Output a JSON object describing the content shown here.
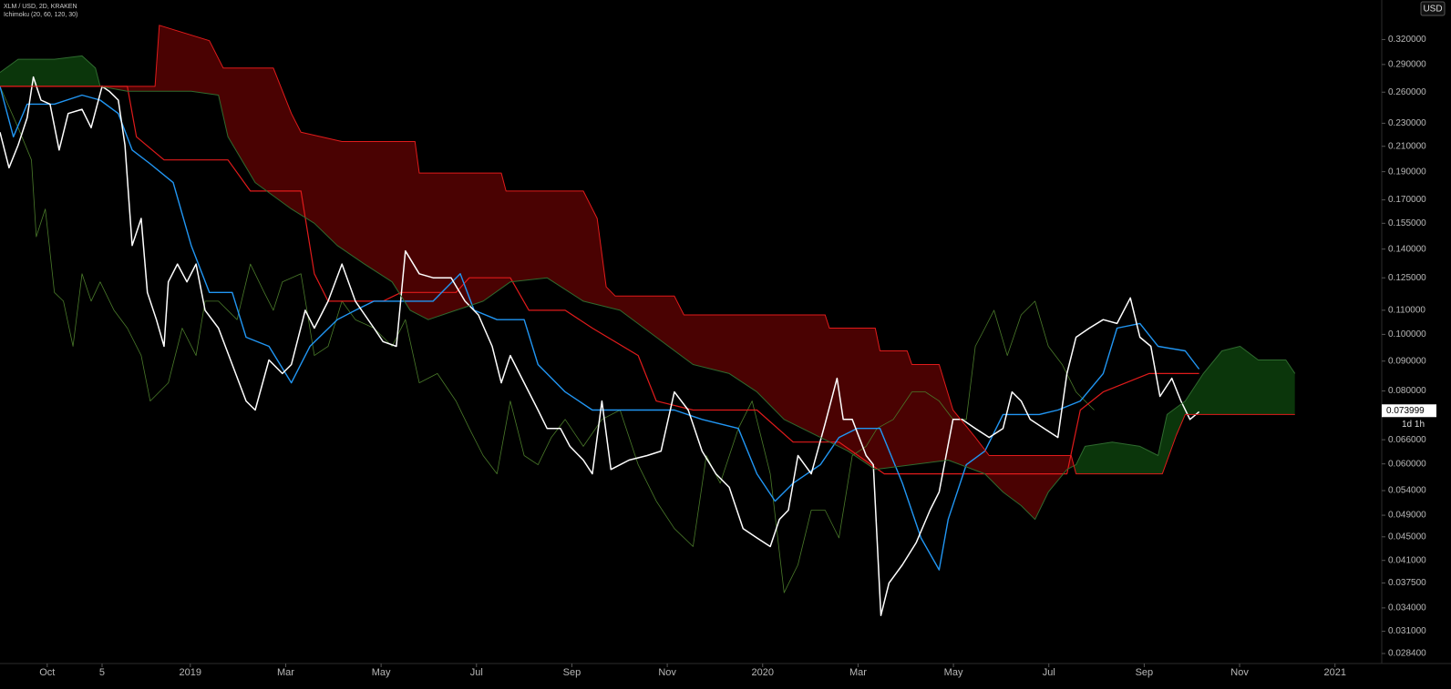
{
  "chart_data": {
    "type": "line",
    "log_scale": true,
    "grid": false,
    "title": "XLM / USD, 2D, KRAKEN",
    "subtitle": "Ichimoku (20, 60, 120, 30)",
    "currency": "USD",
    "last_price": 0.073999,
    "countdown": "1d 1h",
    "background": "#000000",
    "xlim": [
      -0.99,
      27.98
    ],
    "ylim": [
      0.0273,
      0.374
    ],
    "xticks": [
      {
        "value": 0,
        "label": "Oct"
      },
      {
        "value": 1.15,
        "label": "5"
      },
      {
        "value": 3,
        "label": "2019"
      },
      {
        "value": 5,
        "label": "Mar"
      },
      {
        "value": 7,
        "label": "May"
      },
      {
        "value": 9,
        "label": "Jul"
      },
      {
        "value": 11,
        "label": "Sep"
      },
      {
        "value": 13,
        "label": "Nov"
      },
      {
        "value": 15,
        "label": "2020"
      },
      {
        "value": 17,
        "label": "Mar"
      },
      {
        "value": 19,
        "label": "May"
      },
      {
        "value": 21,
        "label": "Jul"
      },
      {
        "value": 23,
        "label": "Sep"
      },
      {
        "value": 25,
        "label": "Nov"
      },
      {
        "value": 27,
        "label": "2021"
      }
    ],
    "yticks": [
      {
        "value": 0.32,
        "label": "0.320000"
      },
      {
        "value": 0.29,
        "label": "0.290000"
      },
      {
        "value": 0.26,
        "label": "0.260000"
      },
      {
        "value": 0.23,
        "label": "0.230000"
      },
      {
        "value": 0.21,
        "label": "0.210000"
      },
      {
        "value": 0.19,
        "label": "0.190000"
      },
      {
        "value": 0.17,
        "label": "0.170000"
      },
      {
        "value": 0.155,
        "label": "0.155000"
      },
      {
        "value": 0.14,
        "label": "0.140000"
      },
      {
        "value": 0.125,
        "label": "0.125000"
      },
      {
        "value": 0.11,
        "label": "0.110000"
      },
      {
        "value": 0.1,
        "label": "0.100000"
      },
      {
        "value": 0.09,
        "label": "0.090000"
      },
      {
        "value": 0.08,
        "label": "0.080000"
      },
      {
        "value": 0.066,
        "label": "0.066000"
      },
      {
        "value": 0.06,
        "label": "0.060000"
      },
      {
        "value": 0.054,
        "label": "0.054000"
      },
      {
        "value": 0.049,
        "label": "0.049000"
      },
      {
        "value": 0.045,
        "label": "0.045000"
      },
      {
        "value": 0.041,
        "label": "0.041000"
      },
      {
        "value": 0.0375,
        "label": "0.037500"
      },
      {
        "value": 0.034,
        "label": "0.034000"
      },
      {
        "value": 0.031,
        "label": "0.031000"
      },
      {
        "value": 0.0284,
        "label": "0.028400"
      }
    ],
    "cloud": {
      "above_color": "#4a0202",
      "below_color": "#0b360b"
    },
    "series": [
      {
        "color": "#4a7a2a",
        "width": 0.8,
        "x": [
          -0.99,
          -0.61,
          -0.33,
          -0.23,
          -0.04,
          0.15,
          0.34,
          0.54,
          0.73,
          0.92,
          1.11,
          1.4,
          1.68,
          1.97,
          2.16,
          2.35,
          2.54,
          2.83,
          3.12,
          3.31,
          3.59,
          3.98,
          4.26,
          4.55,
          4.74,
          4.93,
          5.32,
          5.6,
          5.89,
          6.18,
          6.46,
          6.85,
          7.23,
          7.51,
          7.8,
          8.18,
          8.57,
          8.85,
          9.14,
          9.43,
          9.71,
          10.0,
          10.29,
          10.57,
          10.86,
          11.24,
          11.63,
          12.01,
          12.39,
          12.77,
          13.15,
          13.54,
          13.82,
          14.11,
          14.49,
          14.78,
          15.16,
          15.45,
          15.74,
          16.02,
          16.31,
          16.6,
          16.88,
          17.17,
          17.4,
          17.74,
          18.13,
          18.41,
          18.7,
          18.99,
          19.27,
          19.46,
          19.66,
          19.85,
          20.13,
          20.42,
          20.71,
          20.99,
          21.28,
          21.57,
          21.76,
          21.95
        ],
        "values": [
          0.266,
          0.226,
          0.199,
          0.147,
          0.164,
          0.118,
          0.114,
          0.0954,
          0.127,
          0.114,
          0.123,
          0.11,
          0.1025,
          0.092,
          0.0769,
          0.0797,
          0.0826,
          0.1025,
          0.092,
          0.114,
          0.114,
          0.106,
          0.132,
          0.118,
          0.11,
          0.123,
          0.127,
          0.092,
          0.0954,
          0.114,
          0.106,
          0.1025,
          0.0954,
          0.106,
          0.0826,
          0.0857,
          0.0769,
          0.069,
          0.062,
          0.0577,
          0.0769,
          0.062,
          0.0598,
          0.0666,
          0.0715,
          0.0643,
          0.0715,
          0.0742,
          0.0598,
          0.0518,
          0.0465,
          0.0433,
          0.062,
          0.0556,
          0.069,
          0.0769,
          0.0577,
          0.0361,
          0.0403,
          0.05,
          0.05,
          0.0448,
          0.062,
          0.0643,
          0.069,
          0.0715,
          0.0797,
          0.0797,
          0.0769,
          0.0715,
          0.0715,
          0.0954,
          0.1025,
          0.11,
          0.092,
          0.108,
          0.114,
          0.0954,
          0.0888,
          0.0797,
          0.0769,
          0.0742
        ]
      },
      {
        "color": "#e01b1b",
        "width": 1.2,
        "x": [
          -0.99,
          1.68,
          1.87,
          2.45,
          3.79,
          4.26,
          5.32,
          5.6,
          5.89,
          7.04,
          7.42,
          8.57,
          8.85,
          9.71,
          10.1,
          10.86,
          11.43,
          12.39,
          12.77,
          13.54,
          14.88,
          15.64,
          16.6,
          17.55,
          21.38,
          21.66,
          22.14,
          23.1,
          24.15
        ],
        "values": [
          0.266,
          0.266,
          0.218,
          0.199,
          0.199,
          0.176,
          0.176,
          0.127,
          0.114,
          0.114,
          0.118,
          0.118,
          0.125,
          0.125,
          0.11,
          0.11,
          0.1025,
          0.092,
          0.0769,
          0.0742,
          0.0742,
          0.0654,
          0.0654,
          0.0577,
          0.0577,
          0.0742,
          0.0797,
          0.0857,
          0.0857
        ]
      },
      {
        "color": "#2196f3",
        "width": 1.4,
        "x": [
          -0.99,
          -0.71,
          -0.42,
          0.15,
          0.73,
          1.11,
          1.49,
          1.78,
          2.16,
          2.64,
          3.02,
          3.4,
          3.88,
          4.17,
          4.65,
          5.12,
          5.51,
          6.08,
          6.46,
          6.85,
          7.42,
          8.09,
          8.66,
          8.95,
          9.43,
          10.0,
          10.29,
          10.86,
          11.43,
          11.82,
          13.15,
          13.73,
          14.49,
          14.88,
          15.26,
          15.64,
          16.21,
          16.6,
          16.98,
          17.46,
          17.93,
          18.32,
          18.7,
          18.89,
          19.27,
          19.66,
          20.04,
          20.8,
          21.19,
          21.66,
          22.14,
          22.43,
          22.91,
          23.29,
          23.86,
          24.15
        ],
        "values": [
          0.266,
          0.218,
          0.248,
          0.248,
          0.257,
          0.252,
          0.239,
          0.207,
          0.196,
          0.182,
          0.142,
          0.118,
          0.118,
          0.0989,
          0.0954,
          0.0826,
          0.0954,
          0.106,
          0.11,
          0.114,
          0.114,
          0.114,
          0.127,
          0.11,
          0.106,
          0.106,
          0.0888,
          0.0797,
          0.0742,
          0.0742,
          0.0742,
          0.0715,
          0.069,
          0.0577,
          0.0518,
          0.0556,
          0.0598,
          0.0666,
          0.069,
          0.069,
          0.0556,
          0.0448,
          0.0395,
          0.0482,
          0.0598,
          0.0631,
          0.0729,
          0.0729,
          0.0742,
          0.0769,
          0.0857,
          0.1025,
          0.1044,
          0.0954,
          0.0937,
          0.0872
        ]
      },
      {
        "color": "#ffffff",
        "width": 1.5,
        "x": [
          -0.99,
          -0.8,
          -0.61,
          -0.42,
          -0.29,
          -0.13,
          0.06,
          0.25,
          0.44,
          0.73,
          0.92,
          1.15,
          1.3,
          1.49,
          1.63,
          1.78,
          1.97,
          2.1,
          2.29,
          2.45,
          2.54,
          2.73,
          2.93,
          3.12,
          3.31,
          3.59,
          3.88,
          4.17,
          4.36,
          4.65,
          4.93,
          5.12,
          5.41,
          5.6,
          5.89,
          6.18,
          6.46,
          6.85,
          7.04,
          7.32,
          7.51,
          7.8,
          8.09,
          8.47,
          8.76,
          9.04,
          9.33,
          9.52,
          9.71,
          10.0,
          10.29,
          10.48,
          10.76,
          10.96,
          11.24,
          11.43,
          11.63,
          11.82,
          12.2,
          12.58,
          12.87,
          13.15,
          13.44,
          13.73,
          14.02,
          14.3,
          14.59,
          14.88,
          15.16,
          15.35,
          15.54,
          15.74,
          16.02,
          16.31,
          16.56,
          16.69,
          16.88,
          17.17,
          17.32,
          17.48,
          17.65,
          17.93,
          18.22,
          18.51,
          18.7,
          18.99,
          19.18,
          19.46,
          19.75,
          20.04,
          20.23,
          20.42,
          20.61,
          20.9,
          21.19,
          21.38,
          21.57,
          21.85,
          22.14,
          22.43,
          22.71,
          22.91,
          23.14,
          23.33,
          23.58,
          23.77,
          23.96,
          24.15
        ],
        "values": [
          0.222,
          0.193,
          0.211,
          0.235,
          0.276,
          0.252,
          0.248,
          0.207,
          0.239,
          0.243,
          0.226,
          0.266,
          0.261,
          0.252,
          0.211,
          0.142,
          0.158,
          0.118,
          0.106,
          0.0954,
          0.123,
          0.132,
          0.123,
          0.132,
          0.11,
          0.1025,
          0.0888,
          0.0769,
          0.0742,
          0.0904,
          0.0857,
          0.0888,
          0.11,
          0.1025,
          0.114,
          0.132,
          0.114,
          0.1025,
          0.0972,
          0.0954,
          0.139,
          0.127,
          0.125,
          0.125,
          0.114,
          0.108,
          0.0954,
          0.0826,
          0.092,
          0.0826,
          0.0742,
          0.069,
          0.069,
          0.0643,
          0.0609,
          0.0577,
          0.0769,
          0.0587,
          0.0609,
          0.062,
          0.0631,
          0.0797,
          0.0742,
          0.0631,
          0.0577,
          0.0547,
          0.0465,
          0.0448,
          0.0433,
          0.0482,
          0.05,
          0.062,
          0.0577,
          0.0703,
          0.0841,
          0.0715,
          0.0715,
          0.062,
          0.0598,
          0.033,
          0.0375,
          0.0403,
          0.044,
          0.05,
          0.0537,
          0.0715,
          0.0715,
          0.069,
          0.0666,
          0.069,
          0.0797,
          0.0769,
          0.0715,
          0.069,
          0.0666,
          0.0857,
          0.0989,
          0.1025,
          0.106,
          0.1044,
          0.1155,
          0.0989,
          0.0954,
          0.0783,
          0.0841,
          0.0769,
          0.0715,
          0.0737
        ]
      },
      {
        "color": "#2f6b2f",
        "width": 1,
        "x": [
          -0.99,
          -0.61,
          0.15,
          0.73,
          1.01,
          1.11,
          1.68,
          2.45,
          3.02,
          3.59,
          3.79,
          4.36,
          5.12,
          5.6,
          6.08,
          6.65,
          7.23,
          7.61,
          7.99,
          8.57,
          9.14,
          9.71,
          10.48,
          11.24,
          12.01,
          12.77,
          13.54,
          14.3,
          14.88,
          15.45,
          16.21,
          16.79,
          17.36,
          18.13,
          18.89,
          19.66,
          20.04,
          20.42,
          20.71,
          20.99,
          21.38,
          21.57,
          21.76,
          22.33,
          22.91,
          23.29,
          23.48,
          23.86,
          24.24,
          24.63,
          25.01,
          25.39,
          25.97,
          26.16
        ],
        "values": [
          0.281,
          0.296,
          0.296,
          0.3,
          0.286,
          0.266,
          0.261,
          0.261,
          0.261,
          0.257,
          0.218,
          0.182,
          0.164,
          0.155,
          0.142,
          0.132,
          0.123,
          0.11,
          0.106,
          0.11,
          0.114,
          0.123,
          0.125,
          0.114,
          0.11,
          0.0989,
          0.0888,
          0.0857,
          0.0797,
          0.0715,
          0.0666,
          0.0631,
          0.0587,
          0.0598,
          0.0609,
          0.0577,
          0.0537,
          0.0509,
          0.0482,
          0.0537,
          0.0587,
          0.0598,
          0.0643,
          0.0654,
          0.0643,
          0.062,
          0.0729,
          0.0769,
          0.0857,
          0.0937,
          0.0954,
          0.0904,
          0.0904,
          0.0857
        ]
      },
      {
        "color": "#e01b1b",
        "width": 1,
        "x": [
          -0.99,
          2.26,
          2.35,
          3.4,
          3.69,
          4.74,
          5.12,
          5.32,
          6.18,
          7.71,
          7.8,
          9.52,
          9.62,
          11.24,
          11.53,
          11.72,
          11.91,
          13.15,
          13.35,
          16.31,
          16.4,
          17.36,
          17.46,
          18.03,
          18.13,
          18.7,
          18.99,
          19.46,
          19.75,
          21.47,
          21.57,
          23.38,
          23.67,
          23.86,
          26.16
        ],
        "values": [
          0.266,
          0.266,
          0.3385,
          0.3185,
          0.286,
          0.286,
          0.239,
          0.222,
          0.214,
          0.214,
          0.189,
          0.189,
          0.176,
          0.176,
          0.158,
          0.1206,
          0.1163,
          0.1163,
          0.108,
          0.108,
          0.1025,
          0.1025,
          0.0937,
          0.0937,
          0.0888,
          0.0888,
          0.0742,
          0.0666,
          0.062,
          0.062,
          0.0577,
          0.0577,
          0.0671,
          0.0729,
          0.0729
        ]
      }
    ]
  }
}
